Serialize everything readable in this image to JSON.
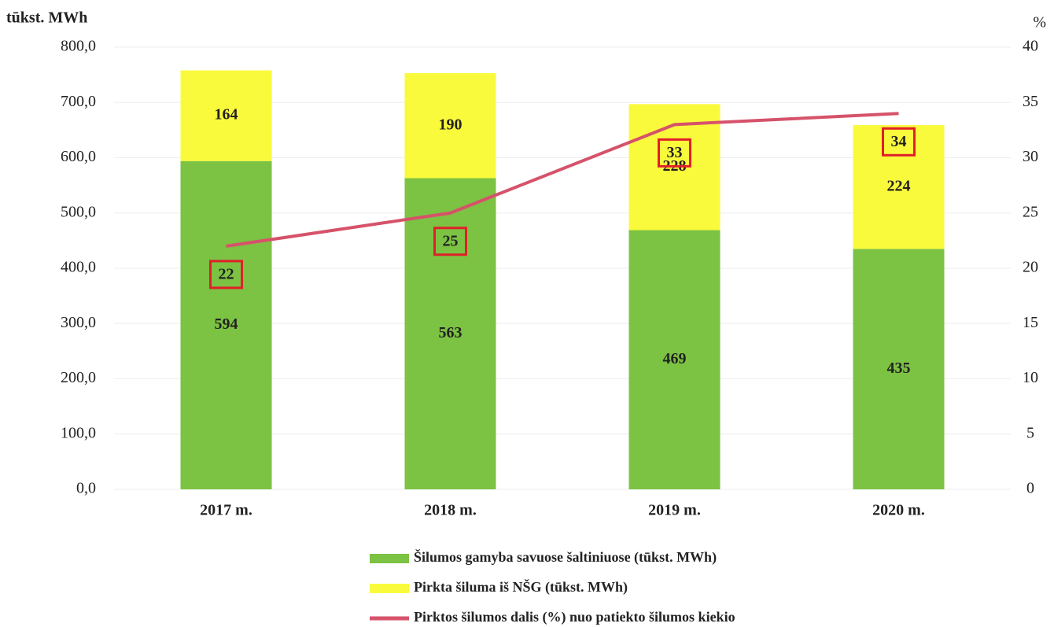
{
  "chart_data": {
    "type": "stacked-bar-line",
    "y_label": "tūkst. MWh",
    "y2_label": "%",
    "categories": [
      "2017 m.",
      "2018 m.",
      "2019 m.",
      "2020 m."
    ],
    "series": [
      {
        "name": "Šilumos gamyba savuose šaltiniuose (tūkst. MWh)",
        "color": "#7cc243",
        "type": "bar",
        "values": [
          594,
          563,
          469,
          435
        ]
      },
      {
        "name": "Pirkta šiluma iš NŠG (tūkst. MWh)",
        "color": "#fafa3c",
        "type": "bar",
        "values": [
          164,
          190,
          228,
          224
        ]
      },
      {
        "name": "Pirktos šilumos dalis (%) nuo patiekto šilumos kiekio",
        "color": "#d6526a",
        "type": "line",
        "axis": "y2",
        "values": [
          22,
          25,
          33,
          34
        ]
      }
    ],
    "ylim": [
      0,
      800
    ],
    "yticks": [
      {
        "value": 0,
        "label": "0,0"
      },
      {
        "value": 100,
        "label": "100,0"
      },
      {
        "value": 200,
        "label": "200,0"
      },
      {
        "value": 300,
        "label": "300,0"
      },
      {
        "value": 400,
        "label": "400,0"
      },
      {
        "value": 500,
        "label": "500,0"
      },
      {
        "value": 600,
        "label": "600,0"
      },
      {
        "value": 700,
        "label": "700,0"
      },
      {
        "value": 800,
        "label": "800,0"
      }
    ],
    "y2lim": [
      0,
      40
    ],
    "y2ticks": [
      0,
      5,
      10,
      15,
      20,
      25,
      30,
      35,
      40
    ],
    "grid": true
  }
}
